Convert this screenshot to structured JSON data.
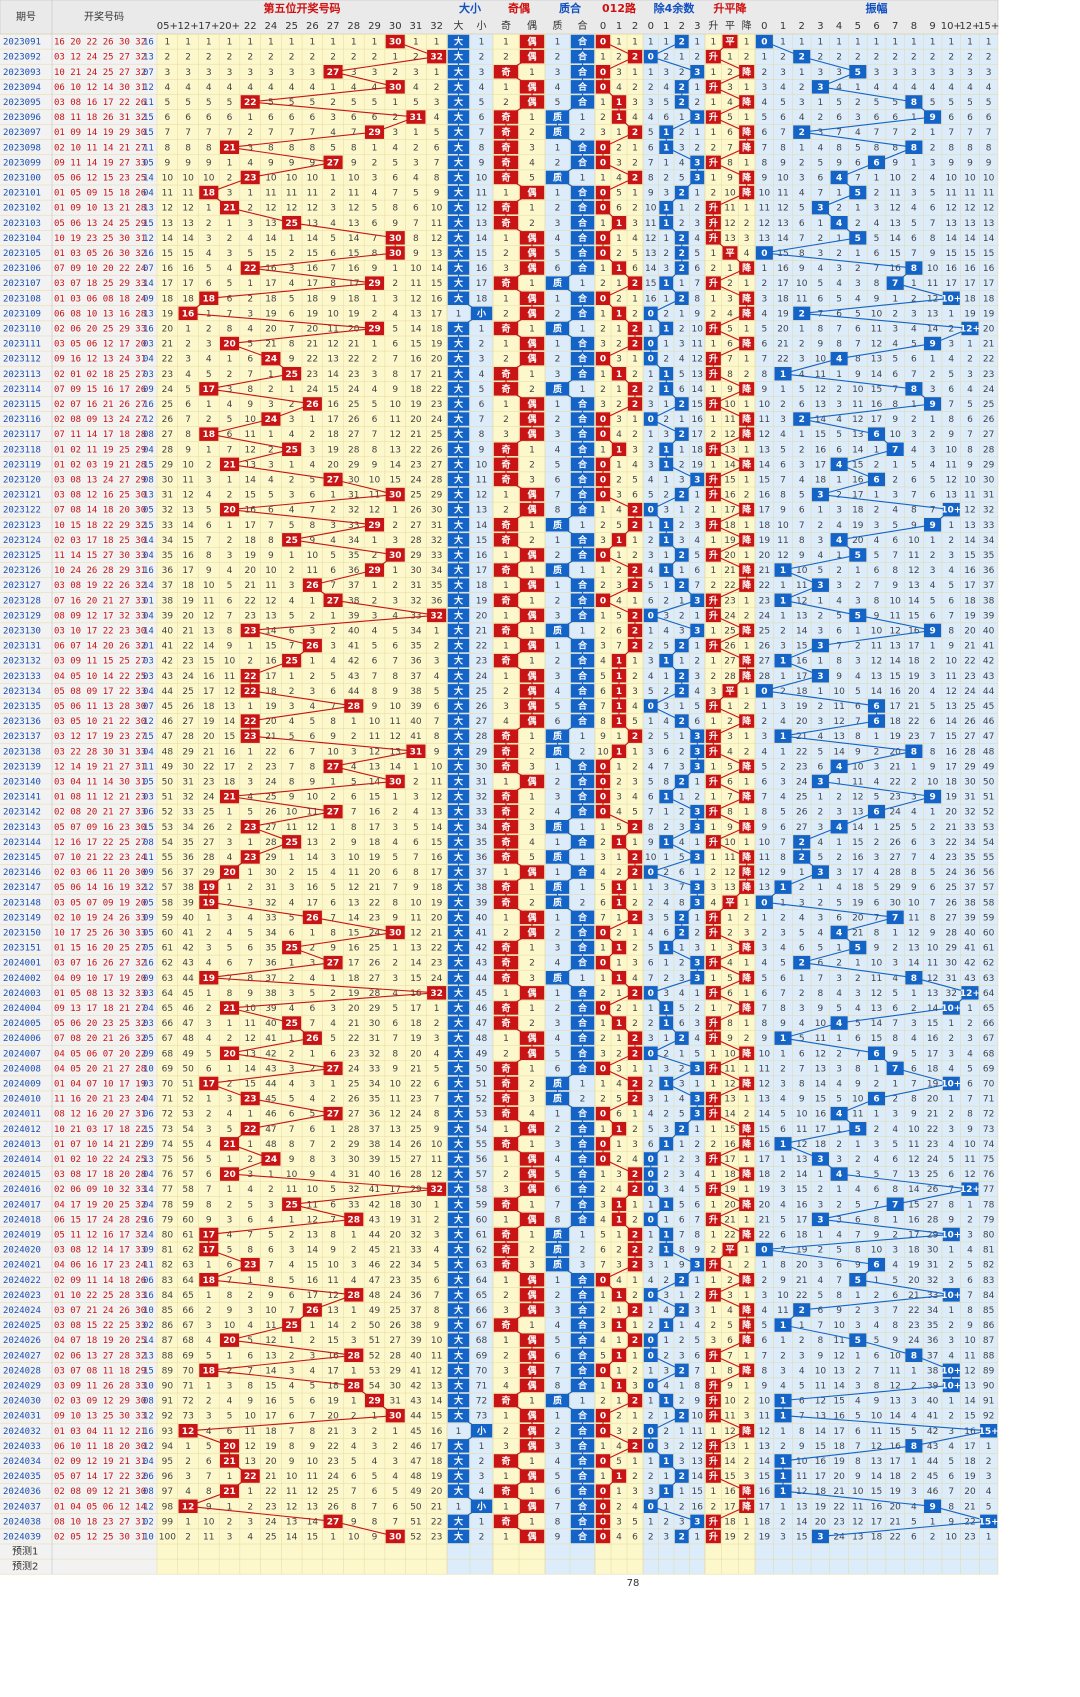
{
  "header": {
    "period_label": "期号",
    "numbers_label": "开奖号码",
    "groups": [
      {
        "key": "pos5",
        "label": "第五位开奖号码",
        "color": "#d01010"
      },
      {
        "key": "size",
        "label": "大小",
        "color": "#1050c0"
      },
      {
        "key": "parity",
        "label": "奇偶",
        "color": "#d01010"
      },
      {
        "key": "prime",
        "label": "质合",
        "color": "#1050c0"
      },
      {
        "key": "mod3",
        "label": "012路",
        "color": "#d01010"
      },
      {
        "key": "mod4",
        "label": "除4余数",
        "color": "#1050c0"
      },
      {
        "key": "trend",
        "label": "升平降",
        "color": "#d01010"
      },
      {
        "key": "amp",
        "label": "振幅",
        "color": "#1050c0"
      }
    ],
    "pos5_cols": [
      "05+",
      "12+",
      "17+",
      "20+",
      "22",
      "24",
      "25",
      "26",
      "27",
      "28",
      "29",
      "30",
      "31",
      "32"
    ],
    "size_cols": [
      "大",
      "小"
    ],
    "parity_cols": [
      "奇",
      "偶"
    ],
    "prime_cols": [
      "质",
      "合"
    ],
    "mod3_cols": [
      "0",
      "1",
      "2"
    ],
    "mod4_cols": [
      "0",
      "1",
      "2",
      "3"
    ],
    "trend_cols": [
      "升",
      "平",
      "降"
    ],
    "amp_cols": [
      "0",
      "1",
      "2",
      "3",
      "4",
      "5",
      "6",
      "7",
      "8",
      "9",
      "10+",
      "12+",
      "15+"
    ]
  },
  "colors": {
    "yellow_bg": "#fdf7cc",
    "blue_bg": "#dcecfb",
    "red_mark": "#c81414",
    "blue_mark": "#1464c8",
    "red_line": "#c81414",
    "blue_line": "#1464c8",
    "grid": "#e4d9a0",
    "period_text": "#1a4fb0",
    "draw_red": "#c81414",
    "draw_blue": "#1a4fb0"
  },
  "chart_data": {
    "type": "table",
    "rows": [
      {
        "period": "2023091",
        "numbers": "16 20 22 26 30 32 16",
        "pos5": 30
      },
      {
        "period": "2023092",
        "numbers": "03 12 24 25 27 32 13",
        "pos5": 32
      },
      {
        "period": "2023093",
        "numbers": "10 21 24 25 27 32 07",
        "pos5": 27
      },
      {
        "period": "2023094",
        "numbers": "06 10 12 14 30 31 12",
        "pos5": 30
      },
      {
        "period": "2023095",
        "numbers": "03 08 16 17 22 26 11",
        "pos5": 22
      },
      {
        "period": "2023096",
        "numbers": "08 11 18 26 31 32 15",
        "pos5": 31
      },
      {
        "period": "2023097",
        "numbers": "01 09 14 19 29 30 15",
        "pos5": 29
      },
      {
        "period": "2023098",
        "numbers": "02 10 11 14 21 27 11",
        "pos5": 21
      },
      {
        "period": "2023099",
        "numbers": "09 11 14 19 27 33 05",
        "pos5": 27
      },
      {
        "period": "2023100",
        "numbers": "05 06 12 15 23 25 14",
        "pos5": 23
      },
      {
        "period": "2023101",
        "numbers": "01 05 09 15 18 26 04",
        "pos5": 18
      },
      {
        "period": "2023102",
        "numbers": "01 09 10 13 21 28 13",
        "pos5": 21
      },
      {
        "period": "2023103",
        "numbers": "05 06 13 24 25 29 15",
        "pos5": 25
      },
      {
        "period": "2023104",
        "numbers": "10 19 23 25 30 31 12",
        "pos5": 30
      },
      {
        "period": "2023105",
        "numbers": "01 03 05 26 30 32 16",
        "pos5": 30
      },
      {
        "period": "2023106",
        "numbers": "07 09 10 20 22 24 07",
        "pos5": 22
      },
      {
        "period": "2023107",
        "numbers": "03 07 18 25 29 33 14",
        "pos5": 29
      },
      {
        "period": "2023108",
        "numbers": "01 03 06 08 18 24 09",
        "pos5": 18
      },
      {
        "period": "2023109",
        "numbers": "06 08 10 13 16 28 13",
        "pos5": 16
      },
      {
        "period": "2023110",
        "numbers": "02 06 20 25 29 33 16",
        "pos5": 29
      },
      {
        "period": "2023111",
        "numbers": "03 05 06 12 17 20 03",
        "pos5": 20
      },
      {
        "period": "2023112",
        "numbers": "09 16 12 13 24 31 04",
        "pos5": 24
      },
      {
        "period": "2023113",
        "numbers": "02 01 02 18 25 27 03",
        "pos5": 25
      },
      {
        "period": "2023114",
        "numbers": "07 09 15 16 17 26 09",
        "pos5": 17
      },
      {
        "period": "2023115",
        "numbers": "02 07 16 21 26 27 16",
        "pos5": 26
      },
      {
        "period": "2023116",
        "numbers": "02 08 09 13 24 27 12",
        "pos5": 24
      },
      {
        "period": "2023117",
        "numbers": "07 11 14 17 18 28 08",
        "pos5": 18
      },
      {
        "period": "2023118",
        "numbers": "01 02 11 19 25 29 04",
        "pos5": 25
      },
      {
        "period": "2023119",
        "numbers": "01 02 03 19 21 28 15",
        "pos5": 21
      },
      {
        "period": "2023120",
        "numbers": "03 08 13 24 27 29 08",
        "pos5": 27
      },
      {
        "period": "2023121",
        "numbers": "03 08 12 16 25 30 13",
        "pos5": 30
      },
      {
        "period": "2023122",
        "numbers": "07 08 14 18 20 30 05",
        "pos5": 20
      },
      {
        "period": "2023123",
        "numbers": "10 15 18 22 29 32 15",
        "pos5": 29
      },
      {
        "period": "2023124",
        "numbers": "02 03 17 18 25 30 14",
        "pos5": 25
      },
      {
        "period": "2023125",
        "numbers": "11 14 15 27 30 33 04",
        "pos5": 30
      },
      {
        "period": "2023126",
        "numbers": "10 24 26 28 29 31 16",
        "pos5": 29
      },
      {
        "period": "2023127",
        "numbers": "03 08 19 22 26 32 14",
        "pos5": 26
      },
      {
        "period": "2023128",
        "numbers": "07 16 20 21 27 33 01",
        "pos5": 27
      },
      {
        "period": "2023129",
        "numbers": "08 09 12 17 32 33 04",
        "pos5": 32
      },
      {
        "period": "2023130",
        "numbers": "03 10 17 22 23 30 14",
        "pos5": 23
      },
      {
        "period": "2023131",
        "numbers": "06 07 14 20 26 32 01",
        "pos5": 26
      },
      {
        "period": "2023132",
        "numbers": "03 09 11 15 25 27 03",
        "pos5": 25
      },
      {
        "period": "2023133",
        "numbers": "04 05 10 14 22 25 03",
        "pos5": 22
      },
      {
        "period": "2023134",
        "numbers": "05 08 09 17 22 33 04",
        "pos5": 22
      },
      {
        "period": "2023135",
        "numbers": "05 06 11 13 28 30 07",
        "pos5": 28
      },
      {
        "period": "2023136",
        "numbers": "03 05 10 21 22 30 12",
        "pos5": 22
      },
      {
        "period": "2023137",
        "numbers": "03 12 17 19 23 27 15",
        "pos5": 23
      },
      {
        "period": "2023138",
        "numbers": "03 22 28 30 31 33 04",
        "pos5": 31
      },
      {
        "period": "2023139",
        "numbers": "12 14 19 21 27 31 11",
        "pos5": 27
      },
      {
        "period": "2023140",
        "numbers": "03 04 11 14 30 31 05",
        "pos5": 30
      },
      {
        "period": "2023141",
        "numbers": "01 08 11 12 21 23 03",
        "pos5": 21
      },
      {
        "period": "2023142",
        "numbers": "02 08 20 21 27 33 06",
        "pos5": 27
      },
      {
        "period": "2023143",
        "numbers": "05 07 09 16 23 30 15",
        "pos5": 23
      },
      {
        "period": "2023144",
        "numbers": "12 16 17 22 25 27 08",
        "pos5": 25
      },
      {
        "period": "2023145",
        "numbers": "07 10 21 22 23 24 11",
        "pos5": 23
      },
      {
        "period": "2023146",
        "numbers": "02 03 06 11 20 30 09",
        "pos5": 20
      },
      {
        "period": "2023147",
        "numbers": "05 06 14 16 19 32 12",
        "pos5": 19
      },
      {
        "period": "2023148",
        "numbers": "03 05 07 09 19 20 05",
        "pos5": 19
      },
      {
        "period": "2023149",
        "numbers": "02 10 19 24 26 33 09",
        "pos5": 26
      },
      {
        "period": "2023150",
        "numbers": "10 17 25 26 30 33 05",
        "pos5": 30
      },
      {
        "period": "2023151",
        "numbers": "01 15 16 20 25 27 05",
        "pos5": 25
      },
      {
        "period": "2024001",
        "numbers": "03 07 16 26 27 32 16",
        "pos5": 27
      },
      {
        "period": "2024002",
        "numbers": "04 09 10 17 19 20 09",
        "pos5": 19
      },
      {
        "period": "2024003",
        "numbers": "01 05 08 13 32 33 03",
        "pos5": 32
      },
      {
        "period": "2024004",
        "numbers": "09 13 17 18 21 27 04",
        "pos5": 21
      },
      {
        "period": "2024005",
        "numbers": "05 06 20 23 25 32 03",
        "pos5": 25
      },
      {
        "period": "2024006",
        "numbers": "07 08 20 21 26 32 05",
        "pos5": 26
      },
      {
        "period": "2024007",
        "numbers": "04 05 06 07 20 22 09",
        "pos5": 20
      },
      {
        "period": "2024008",
        "numbers": "04 05 20 21 27 28 10",
        "pos5": 27
      },
      {
        "period": "2024009",
        "numbers": "01 04 07 10 17 19 03",
        "pos5": 17
      },
      {
        "period": "2024010",
        "numbers": "11 16 20 21 23 24 04",
        "pos5": 23
      },
      {
        "period": "2024011",
        "numbers": "08 12 16 20 27 31 06",
        "pos5": 27
      },
      {
        "period": "2024012",
        "numbers": "10 21 03 17 18 22 15",
        "pos5": 22
      },
      {
        "period": "2024013",
        "numbers": "01 07 10 14 21 22 09",
        "pos5": 21
      },
      {
        "period": "2024014",
        "numbers": "01 02 10 22 24 25 13",
        "pos5": 24
      },
      {
        "period": "2024015",
        "numbers": "03 08 17 18 20 28 04",
        "pos5": 20
      },
      {
        "period": "2024016",
        "numbers": "02 06 09 10 32 33 14",
        "pos5": 32
      },
      {
        "period": "2024017",
        "numbers": "04 17 19 20 25 32 04",
        "pos5": 25
      },
      {
        "period": "2024018",
        "numbers": "06 15 17 24 28 29 16",
        "pos5": 28
      },
      {
        "period": "2024019",
        "numbers": "05 11 12 16 17 32 14",
        "pos5": 17
      },
      {
        "period": "2024020",
        "numbers": "03 08 12 14 17 33 09",
        "pos5": 17
      },
      {
        "period": "2024021",
        "numbers": "04 06 16 17 23 24 11",
        "pos5": 23
      },
      {
        "period": "2024022",
        "numbers": "02 09 11 14 18 26 06",
        "pos5": 18
      },
      {
        "period": "2024023",
        "numbers": "01 10 22 25 28 33 16",
        "pos5": 28
      },
      {
        "period": "2024024",
        "numbers": "03 07 21 24 26 30 10",
        "pos5": 26
      },
      {
        "period": "2024025",
        "numbers": "03 08 15 22 25 33 02",
        "pos5": 25
      },
      {
        "period": "2024026",
        "numbers": "04 07 18 19 20 25 14",
        "pos5": 20
      },
      {
        "period": "2024027",
        "numbers": "02 06 13 27 28 32 13",
        "pos5": 28
      },
      {
        "period": "2024028",
        "numbers": "03 07 08 11 18 29 15",
        "pos5": 18
      },
      {
        "period": "2024029",
        "numbers": "03 09 11 26 28 33 10",
        "pos5": 28
      },
      {
        "period": "2024030",
        "numbers": "02 03 09 12 29 30 08",
        "pos5": 29
      },
      {
        "period": "2024031",
        "numbers": "09 10 13 25 30 33 12",
        "pos5": 30
      },
      {
        "period": "2024032",
        "numbers": "01 03 04 11 12 21 16",
        "pos5": 12
      },
      {
        "period": "2024033",
        "numbers": "06 10 11 18 20 30 12",
        "pos5": 20
      },
      {
        "period": "2024034",
        "numbers": "02 09 12 19 21 31 04",
        "pos5": 21
      },
      {
        "period": "2024035",
        "numbers": "05 07 14 17 22 32 06",
        "pos5": 22
      },
      {
        "period": "2024036",
        "numbers": "02 08 09 12 21 30 08",
        "pos5": 21
      },
      {
        "period": "2024037",
        "numbers": "01 04 05 06 12 14 12",
        "pos5": 12
      },
      {
        "period": "2024038",
        "numbers": "08 10 18 23 27 31 02",
        "pos5": 27
      },
      {
        "period": "2024039",
        "numbers": "02 05 12 25 30 31 10",
        "pos5": 30
      }
    ],
    "forecast_labels": [
      "预测1",
      "预测2"
    ],
    "footer_value": "78"
  }
}
